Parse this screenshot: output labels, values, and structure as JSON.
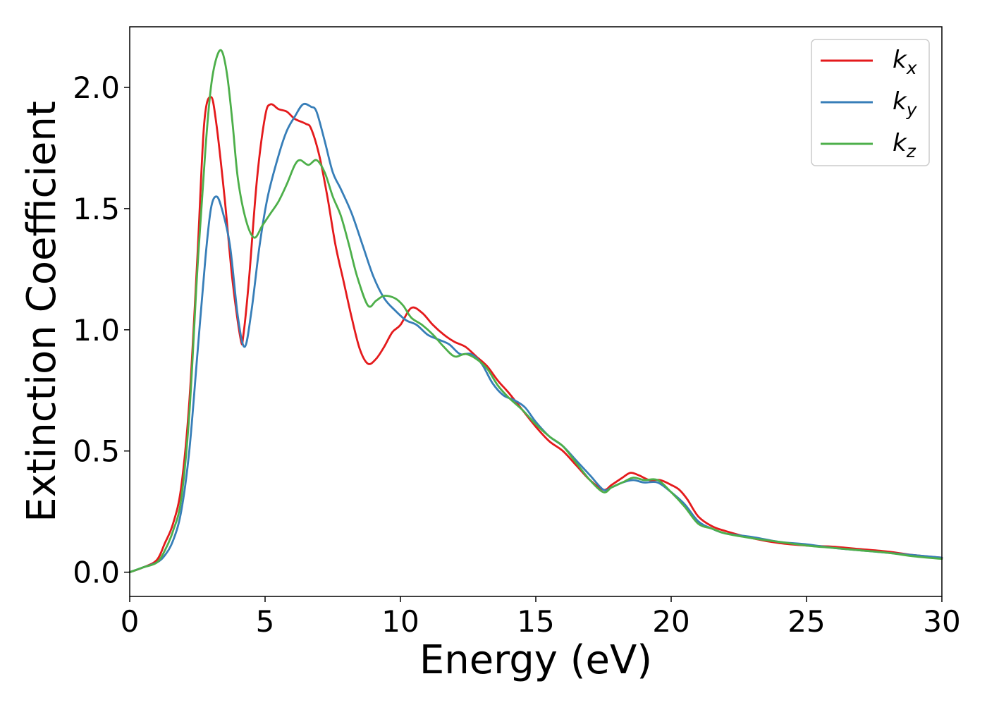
{
  "chart_data": {
    "type": "line",
    "xlabel": "Energy (eV)",
    "ylabel": "Extinction Coefficient",
    "xlim": [
      0,
      30
    ],
    "ylim": [
      -0.1,
      2.25
    ],
    "xticks": [
      0,
      5,
      10,
      15,
      20,
      25,
      30
    ],
    "xtick_labels": [
      "0",
      "5",
      "10",
      "15",
      "20",
      "25",
      "30"
    ],
    "yticks": [
      0.0,
      0.5,
      1.0,
      1.5,
      2.0
    ],
    "ytick_labels": [
      "0.0",
      "0.5",
      "1.0",
      "1.5",
      "2.0"
    ],
    "grid": false,
    "legend_position": "top-right",
    "series": [
      {
        "name": "k",
        "subscript": "x",
        "color": "#e41a1c",
        "x": [
          0,
          0.5,
          1.0,
          1.3,
          1.6,
          1.9,
          2.2,
          2.5,
          2.75,
          3.0,
          3.2,
          3.5,
          3.8,
          4.1,
          4.2,
          4.4,
          4.7,
          5.0,
          5.2,
          5.5,
          5.8,
          6.1,
          6.5,
          6.7,
          7.0,
          7.3,
          7.6,
          7.9,
          8.2,
          8.5,
          8.8,
          9.1,
          9.4,
          9.7,
          10.0,
          10.4,
          10.8,
          11.2,
          11.6,
          12.0,
          12.4,
          12.8,
          13.2,
          13.6,
          14.0,
          14.5,
          15.0,
          15.5,
          16.0,
          16.5,
          17.0,
          17.5,
          17.8,
          18.2,
          18.5,
          18.8,
          19.2,
          19.6,
          20.0,
          20.3,
          20.6,
          21.0,
          21.5,
          22.0,
          23.0,
          24.0,
          25.0,
          26.0,
          27.0,
          28.0,
          29.0,
          30.0
        ],
        "y": [
          0.0,
          0.02,
          0.05,
          0.12,
          0.2,
          0.35,
          0.7,
          1.3,
          1.85,
          1.96,
          1.85,
          1.55,
          1.2,
          0.96,
          0.98,
          1.2,
          1.62,
          1.88,
          1.93,
          1.91,
          1.9,
          1.87,
          1.85,
          1.83,
          1.72,
          1.55,
          1.35,
          1.2,
          1.05,
          0.92,
          0.86,
          0.88,
          0.93,
          0.99,
          1.02,
          1.09,
          1.07,
          1.02,
          0.98,
          0.95,
          0.93,
          0.89,
          0.85,
          0.79,
          0.74,
          0.67,
          0.6,
          0.54,
          0.5,
          0.44,
          0.38,
          0.34,
          0.36,
          0.39,
          0.41,
          0.4,
          0.38,
          0.38,
          0.36,
          0.34,
          0.3,
          0.23,
          0.19,
          0.17,
          0.14,
          0.12,
          0.11,
          0.105,
          0.095,
          0.085,
          0.07,
          0.06
        ]
      },
      {
        "name": "k",
        "subscript": "y",
        "color": "#377eb8",
        "x": [
          0,
          0.5,
          1.0,
          1.3,
          1.6,
          1.9,
          2.2,
          2.5,
          2.8,
          3.0,
          3.2,
          3.4,
          3.7,
          4.0,
          4.25,
          4.5,
          4.8,
          5.1,
          5.5,
          5.8,
          6.1,
          6.4,
          6.7,
          6.9,
          7.2,
          7.5,
          7.8,
          8.2,
          8.6,
          9.0,
          9.4,
          9.8,
          10.2,
          10.6,
          11.0,
          11.4,
          11.8,
          12.2,
          12.6,
          13.0,
          13.4,
          13.8,
          14.2,
          14.6,
          15.0,
          15.5,
          16.0,
          16.5,
          17.0,
          17.5,
          17.8,
          18.2,
          18.6,
          19.0,
          19.5,
          20.0,
          20.5,
          21.0,
          21.5,
          22.0,
          23.0,
          24.0,
          25.0,
          26.0,
          27.0,
          28.0,
          29.0,
          30.0
        ],
        "y": [
          0.0,
          0.02,
          0.04,
          0.07,
          0.13,
          0.25,
          0.5,
          0.9,
          1.3,
          1.5,
          1.55,
          1.5,
          1.35,
          1.05,
          0.93,
          1.08,
          1.35,
          1.55,
          1.72,
          1.82,
          1.88,
          1.93,
          1.92,
          1.9,
          1.78,
          1.65,
          1.58,
          1.48,
          1.35,
          1.22,
          1.13,
          1.08,
          1.04,
          1.02,
          0.98,
          0.96,
          0.94,
          0.9,
          0.9,
          0.86,
          0.78,
          0.73,
          0.71,
          0.68,
          0.62,
          0.56,
          0.52,
          0.46,
          0.4,
          0.34,
          0.35,
          0.37,
          0.38,
          0.37,
          0.37,
          0.33,
          0.28,
          0.21,
          0.18,
          0.16,
          0.145,
          0.125,
          0.115,
          0.1,
          0.09,
          0.08,
          0.07,
          0.06
        ]
      },
      {
        "name": "k",
        "subscript": "z",
        "color": "#4daf4a",
        "x": [
          0,
          0.5,
          1.0,
          1.3,
          1.6,
          1.9,
          2.2,
          2.5,
          2.8,
          3.0,
          3.2,
          3.4,
          3.6,
          3.8,
          4.0,
          4.3,
          4.6,
          4.9,
          5.2,
          5.5,
          5.8,
          6.1,
          6.3,
          6.6,
          6.9,
          7.2,
          7.5,
          7.8,
          8.1,
          8.4,
          8.8,
          9.1,
          9.4,
          9.8,
          10.1,
          10.4,
          10.8,
          11.2,
          11.6,
          12.0,
          12.4,
          12.8,
          13.2,
          13.6,
          14.0,
          14.5,
          15.0,
          15.5,
          16.0,
          16.5,
          17.0,
          17.5,
          17.8,
          18.2,
          18.6,
          19.0,
          19.5,
          20.0,
          20.5,
          21.0,
          21.5,
          22.0,
          23.0,
          24.0,
          25.0,
          26.0,
          27.0,
          28.0,
          29.0,
          30.0
        ],
        "y": [
          0.0,
          0.02,
          0.04,
          0.09,
          0.17,
          0.3,
          0.65,
          1.25,
          1.75,
          2.0,
          2.12,
          2.15,
          2.05,
          1.85,
          1.62,
          1.45,
          1.38,
          1.43,
          1.48,
          1.53,
          1.6,
          1.68,
          1.7,
          1.68,
          1.7,
          1.65,
          1.55,
          1.47,
          1.35,
          1.22,
          1.1,
          1.12,
          1.14,
          1.13,
          1.1,
          1.05,
          1.02,
          0.98,
          0.93,
          0.89,
          0.9,
          0.88,
          0.84,
          0.77,
          0.72,
          0.67,
          0.61,
          0.56,
          0.52,
          0.45,
          0.38,
          0.33,
          0.35,
          0.37,
          0.39,
          0.38,
          0.38,
          0.33,
          0.27,
          0.2,
          0.18,
          0.16,
          0.14,
          0.125,
          0.11,
          0.1,
          0.09,
          0.08,
          0.065,
          0.055
        ]
      }
    ]
  }
}
